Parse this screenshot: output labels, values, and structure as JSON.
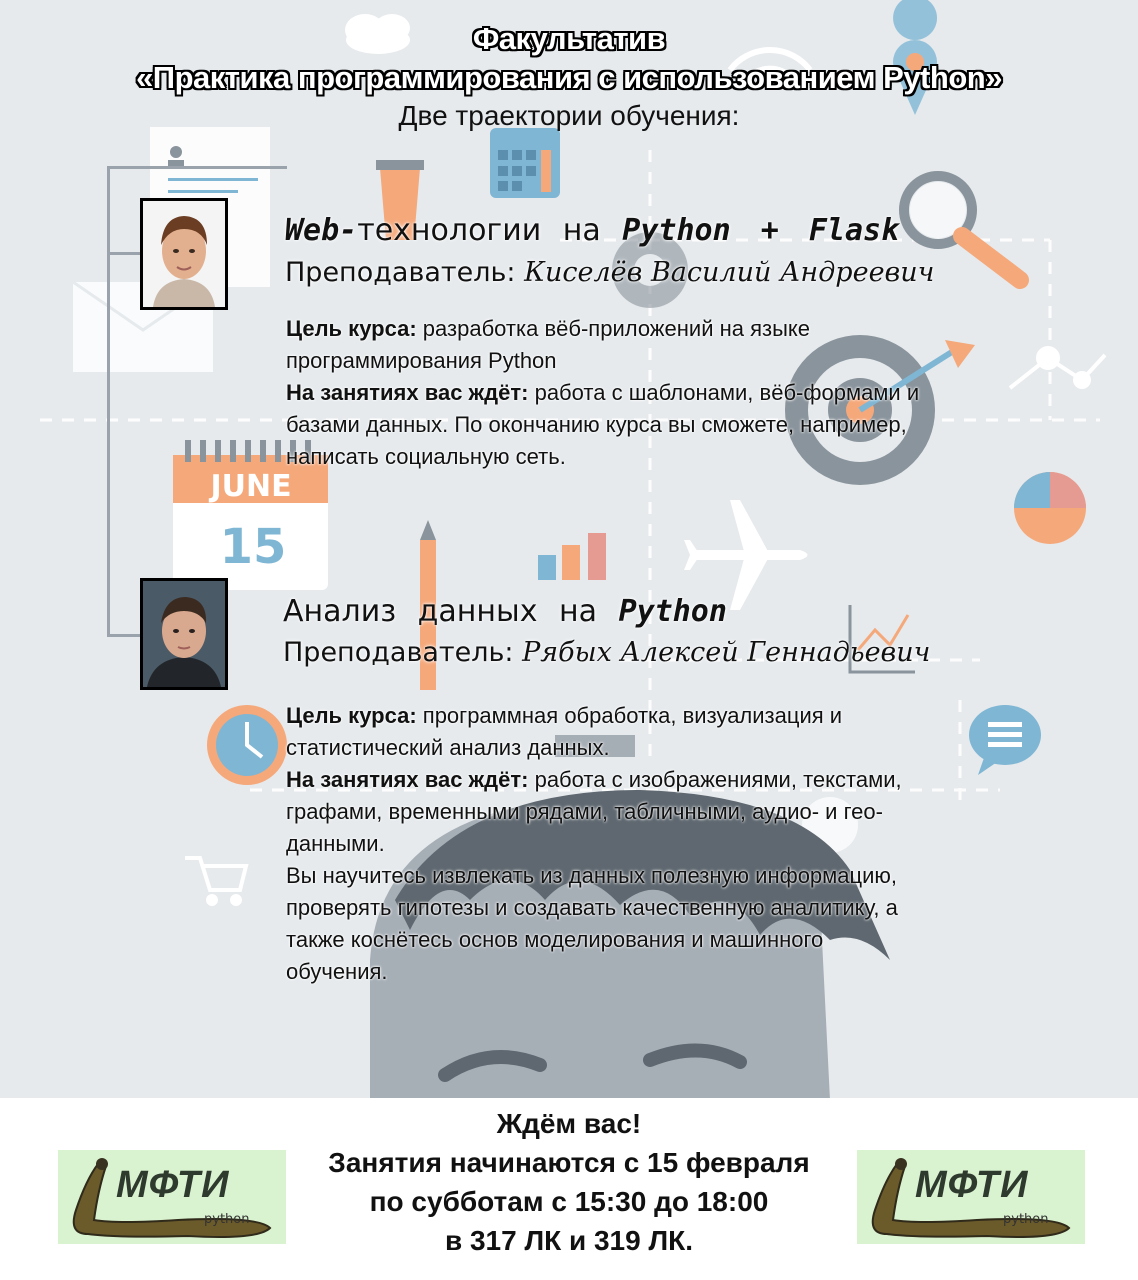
{
  "header": {
    "line1": "Факультатив",
    "line2": "«Практика программирования с использованием Python»",
    "line3": "Две траектории обучения:"
  },
  "courses": [
    {
      "title_bold1": "Web-",
      "title_plain": "технологии  на",
      "title_bold2": "Python + Flask",
      "teacher_label": "Преподаватель:",
      "teacher_name": "Киселёв Василий Андреевич",
      "goal_label": "Цель курса:",
      "goal_text": "разработка вёб-приложений на языке программирования Python",
      "classes_label": "На занятиях вас ждёт:",
      "classes_text": "работа с шаблонами, вёб-формами и базами данных. По окончанию курса вы сможете, например, написать социальную сеть."
    },
    {
      "title_plain": "Анализ  данных  на",
      "title_bold2": "Python",
      "teacher_label": "Преподаватель:",
      "teacher_name": "Рябых Алексей Геннадьевич",
      "goal_label": "Цель курса:",
      "goal_text": "программная обработка, визуализация и статистический анализ данных.",
      "classes_label": "На занятиях вас ждёт:",
      "classes_text": "работа с изображениями, текстами, графами, временными рядами, табличными, аудио- и гео- данными.",
      "extra_text": "Вы научитесь извлекать из данных полезную информацию, проверять гипотезы и создавать качественную аналитику, а также коснётесь основ моделирования и машинного обучения."
    }
  ],
  "background": {
    "calendar_month": "JUNE",
    "calendar_day": "15"
  },
  "footer": {
    "line1": "Ждём вас!",
    "line2": "Занятия начинаются с 15 февраля",
    "line3": "по субботам с 15:30 до 18:00",
    "line4": "в 317 ЛК и 319 ЛК."
  },
  "logo": {
    "text": "МФТИ",
    "sub": "python"
  },
  "colors": {
    "orange": "#f5a87a",
    "blue": "#7fb6d4",
    "gray": "#8a949c",
    "logo_bg": "#d9f2cf"
  }
}
